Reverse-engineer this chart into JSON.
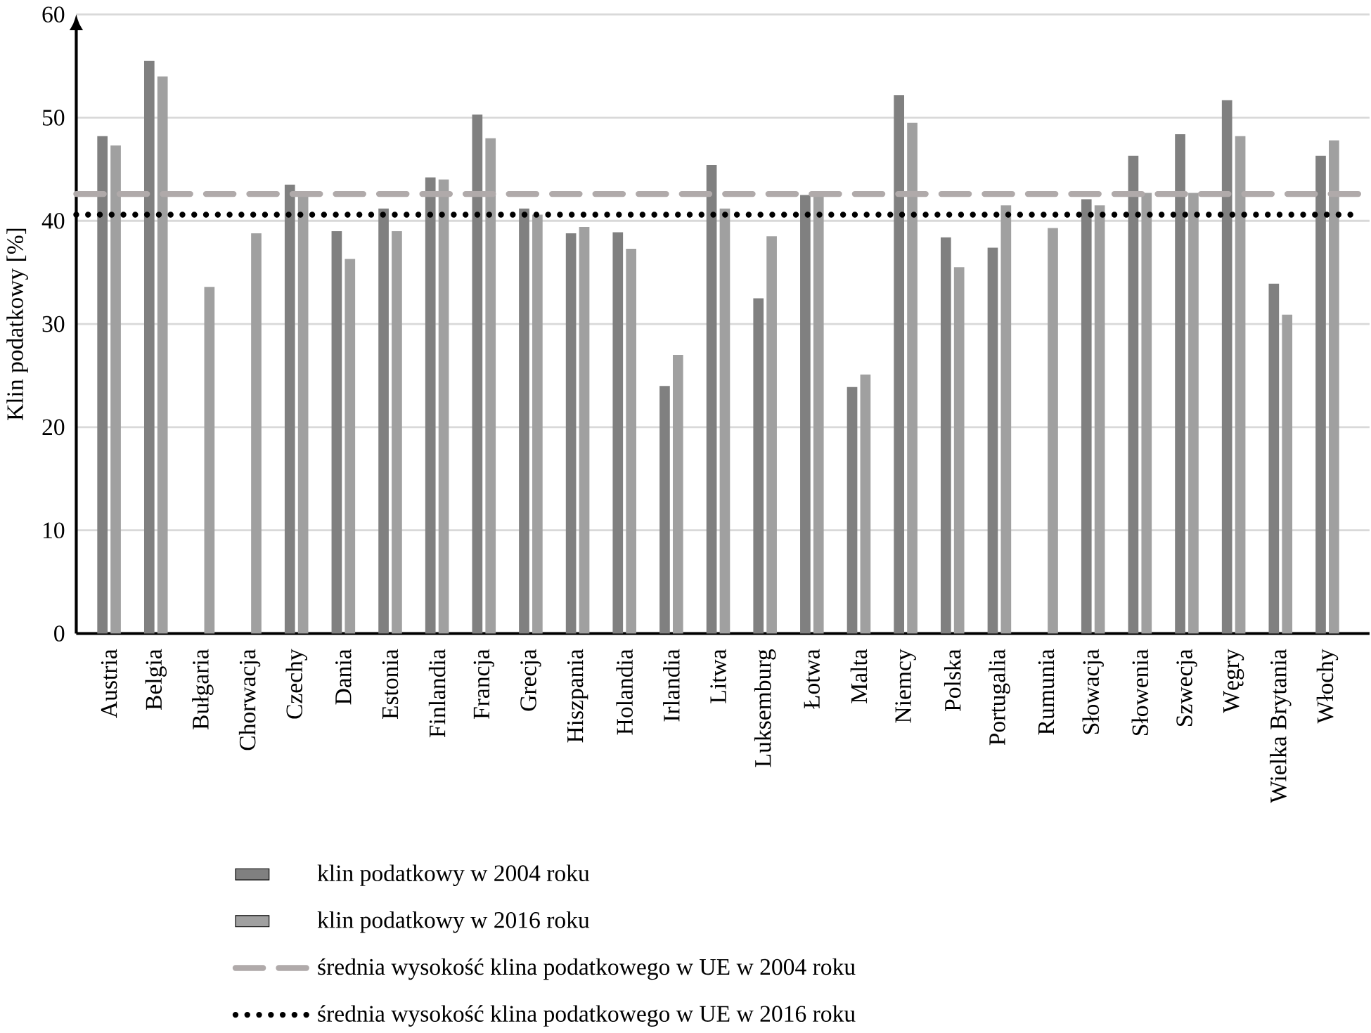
{
  "chart_data": {
    "type": "bar",
    "ylabel": "Klin podatkowy [%]",
    "categories": [
      "Austria",
      "Belgia",
      "Bułgaria",
      "Chorwacja",
      "Czechy",
      "Dania",
      "Estonia",
      "Finlandia",
      "Francja",
      "Grecja",
      "Hiszpania",
      "Holandia",
      "Irlandia",
      "Litwa",
      "Luksemburg",
      "Łotwa",
      "Malta",
      "Niemcy",
      "Polska",
      "Portugalia",
      "Rumunia",
      "Słowacja",
      "Słowenia",
      "Szwecja",
      "Węgry",
      "Wielka Brytania",
      "Włochy"
    ],
    "series": [
      {
        "name": "klin podatkowy w 2004 roku",
        "color": "#808080",
        "values": [
          48.2,
          55.5,
          null,
          null,
          43.5,
          39.0,
          41.2,
          44.2,
          50.3,
          41.2,
          38.8,
          38.9,
          24.0,
          45.4,
          32.5,
          42.5,
          23.9,
          52.2,
          38.4,
          37.4,
          null,
          42.1,
          46.3,
          48.4,
          51.7,
          33.9,
          46.3
        ]
      },
      {
        "name": "klin podatkowy w 2016 roku",
        "color": "#a0a0a0",
        "values": [
          47.3,
          54.0,
          33.6,
          38.8,
          42.8,
          36.3,
          39.0,
          44.0,
          48.0,
          40.6,
          39.4,
          37.3,
          27.0,
          41.2,
          38.5,
          42.5,
          25.1,
          49.5,
          35.5,
          41.5,
          39.3,
          41.5,
          42.7,
          42.7,
          48.2,
          30.9,
          47.8
        ]
      }
    ],
    "ref_lines": [
      {
        "axis": "y",
        "value": 42.6,
        "label": "średnia wysokość klina podatkowego w UE w 2004 roku",
        "color": "#b0aaaa",
        "line_style": "dashed"
      },
      {
        "axis": "y",
        "value": 40.6,
        "label": "średnia wysokość klina podatkowego w UE w 2016 roku",
        "color": "#000000",
        "line_style": "dotted"
      }
    ],
    "ylim": [
      0,
      60
    ],
    "yticks": [
      0,
      10,
      20,
      30,
      40,
      50,
      60
    ],
    "grid": "y",
    "legend": "bottom"
  }
}
